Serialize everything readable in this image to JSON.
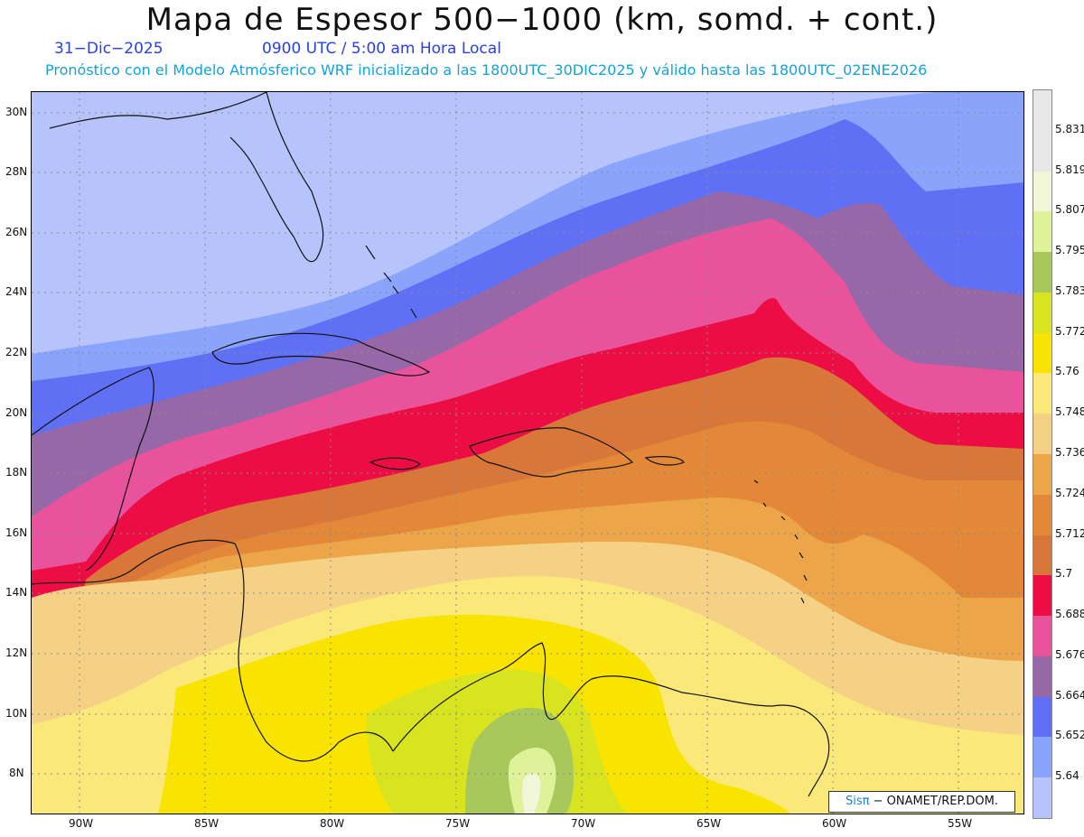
{
  "header": {
    "title": "Mapa de Espesor 500−1000 (km, somd. + cont.)",
    "date": "31−Dic−2025",
    "time": "0900 UTC / 5:00 am Hora Local",
    "init_line": "Pronóstico con el Modelo Atmósferico WRF inicializado a las 1800UTC_30DIC2025 y válido hasta las  1800UTC_02ENE2026"
  },
  "map": {
    "lat_labels": [
      "30N",
      "28N",
      "26N",
      "24N",
      "22N",
      "20N",
      "18N",
      "16N",
      "14N",
      "12N",
      "10N",
      "8N"
    ],
    "lon_labels": [
      "90W",
      "85W",
      "80W",
      "75W",
      "70W",
      "65W",
      "60W",
      "55W"
    ],
    "grid": "dotted"
  },
  "colorbar": {
    "labels": [
      "5.831",
      "5.819",
      "5.807",
      "5.795",
      "5.783",
      "5.772",
      "5.76",
      "5.748",
      "5.736",
      "5.724",
      "5.712",
      "5.7",
      "5.688",
      "5.676",
      "5.664",
      "5.652",
      "5.64"
    ],
    "colors": [
      "#e8e8e8",
      "#f2f6d8",
      "#dff29a",
      "#a8c85c",
      "#d8e420",
      "#f8e400",
      "#fbe87a",
      "#f5d185",
      "#eda54a",
      "#e38838",
      "#d9773a",
      "#ec0d45",
      "#e8539c",
      "#9768a8",
      "#5f70f4",
      "#8aa3fb",
      "#b6c4fb"
    ]
  },
  "credit": {
    "brand": "Sisπ",
    "text": "− ONAMET/REP.DOM."
  }
}
